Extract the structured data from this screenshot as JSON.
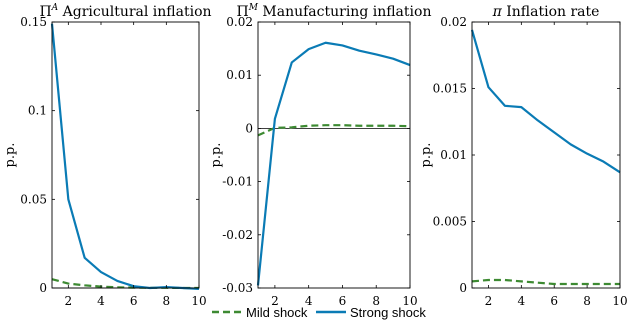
{
  "chart_data": [
    {
      "type": "line",
      "title": "Π^A Agricultural inflation",
      "title_symbol": "Π",
      "title_sup": "A",
      "title_text": "Agricultural inflation",
      "ylabel": "p.p.",
      "xlim": [
        1,
        10
      ],
      "ylim": [
        0,
        0.15
      ],
      "xticks": [
        2,
        4,
        6,
        8,
        10
      ],
      "yticks": [
        0,
        0.05,
        0.1,
        0.15
      ],
      "ytick_labels": [
        "0",
        "0.05",
        "0.1",
        "0.15"
      ],
      "zero_line": true,
      "series": [
        {
          "name": "Mild shock",
          "color": "#3d8a32",
          "dash": true,
          "x": [
            1,
            2,
            3,
            4,
            5,
            6,
            7,
            8,
            9,
            10
          ],
          "y": [
            0.005,
            0.0025,
            0.0015,
            0.0008,
            0.0004,
            0.0002,
            0.0001,
            0.0001,
            0.0,
            0.0
          ]
        },
        {
          "name": "Strong shock",
          "color": "#0a7bb5",
          "dash": false,
          "x": [
            1,
            2,
            3,
            4,
            5,
            6,
            7,
            8,
            9,
            10
          ],
          "y": [
            0.149,
            0.05,
            0.017,
            0.009,
            0.004,
            0.001,
            0.0,
            0.0005,
            0.0,
            -0.0005
          ]
        }
      ]
    },
    {
      "type": "line",
      "title": "Π^M Manufacturing inflation",
      "title_symbol": "Π",
      "title_sup": "M",
      "title_text": "Manufacturing inflation",
      "ylabel": "p.p.",
      "xlim": [
        1,
        10
      ],
      "ylim": [
        -0.03,
        0.02
      ],
      "xticks": [
        2,
        4,
        6,
        8,
        10
      ],
      "yticks": [
        -0.03,
        -0.02,
        -0.01,
        0,
        0.01,
        0.02
      ],
      "ytick_labels": [
        "-0.03",
        "-0.02",
        "-0.01",
        "0",
        "0.01",
        "0.02"
      ],
      "zero_line": true,
      "series": [
        {
          "name": "Mild shock",
          "color": "#3d8a32",
          "dash": true,
          "x": [
            1,
            2,
            3,
            4,
            5,
            6,
            7,
            8,
            9,
            10
          ],
          "y": [
            -0.0013,
            0.0001,
            0.0002,
            0.0005,
            0.0006,
            0.0006,
            0.0005,
            0.0005,
            0.0005,
            0.0004
          ]
        },
        {
          "name": "Strong shock",
          "color": "#0a7bb5",
          "dash": false,
          "x": [
            1,
            2,
            3,
            4,
            5,
            6,
            7,
            8,
            9,
            10
          ],
          "y": [
            -0.0295,
            0.0018,
            0.0124,
            0.0149,
            0.0161,
            0.0156,
            0.0146,
            0.0139,
            0.0131,
            0.0119
          ]
        }
      ]
    },
    {
      "type": "line",
      "title": "π Inflation rate",
      "title_symbol": "π",
      "title_sup": "",
      "title_text": "Inflation rate",
      "ylabel": "p.p.",
      "xlim": [
        1,
        10
      ],
      "ylim": [
        0,
        0.02
      ],
      "xticks": [
        2,
        4,
        6,
        8,
        10
      ],
      "yticks": [
        0,
        0.005,
        0.01,
        0.015,
        0.02
      ],
      "ytick_labels": [
        "0",
        "0.005",
        "0.01",
        "0.015",
        "0.02"
      ],
      "zero_line": false,
      "series": [
        {
          "name": "Mild shock",
          "color": "#3d8a32",
          "dash": true,
          "x": [
            1,
            2,
            3,
            4,
            5,
            6,
            7,
            8,
            9,
            10
          ],
          "y": [
            0.0005,
            0.0006,
            0.0006,
            0.0005,
            0.0004,
            0.0003,
            0.0003,
            0.0003,
            0.0003,
            0.0003
          ]
        },
        {
          "name": "Strong shock",
          "color": "#0a7bb5",
          "dash": false,
          "x": [
            1,
            2,
            3,
            4,
            5,
            6,
            7,
            8,
            9,
            10
          ],
          "y": [
            0.0194,
            0.0151,
            0.0137,
            0.0136,
            0.0126,
            0.0117,
            0.0108,
            0.0101,
            0.0095,
            0.0087
          ]
        }
      ]
    }
  ],
  "legend": {
    "placement": "bottom-center",
    "items": [
      {
        "label": "Mild shock",
        "color": "#3d8a32",
        "dash": true
      },
      {
        "label": "Strong shock",
        "color": "#0a7bb5",
        "dash": false
      }
    ]
  }
}
